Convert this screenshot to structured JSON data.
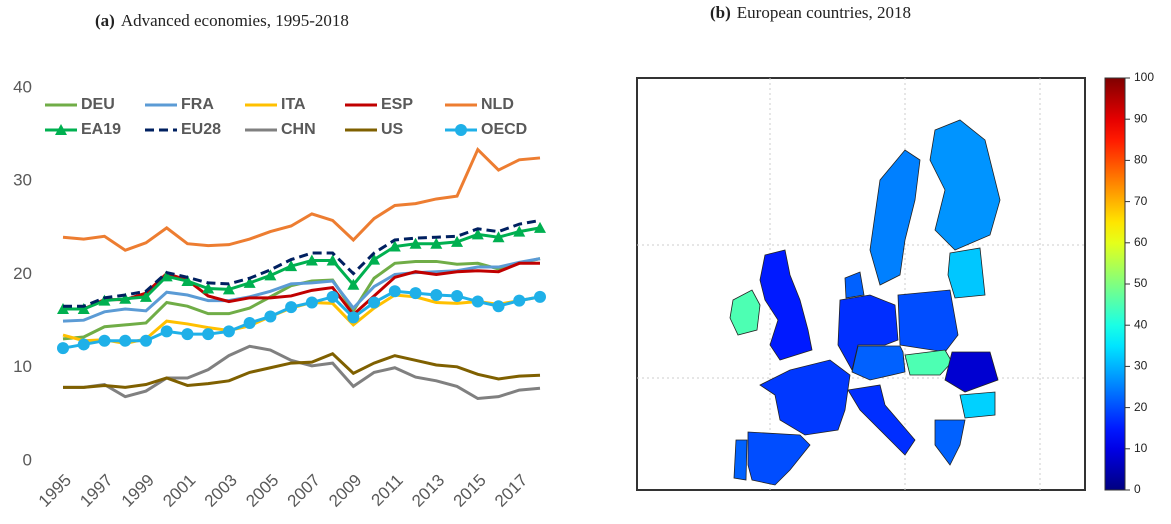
{
  "chart_data": [
    {
      "type": "line",
      "panel_label": "(a)",
      "title": "Advanced economies, 1995-2018",
      "x": [
        1995,
        1996,
        1997,
        1998,
        1999,
        2000,
        2001,
        2002,
        2003,
        2004,
        2005,
        2006,
        2007,
        2008,
        2009,
        2010,
        2011,
        2012,
        2013,
        2014,
        2015,
        2016,
        2017,
        2018
      ],
      "xlim": [
        1995,
        2018
      ],
      "xticks": [
        1995,
        1997,
        1999,
        2001,
        2003,
        2005,
        2007,
        2009,
        2011,
        2013,
        2015,
        2017
      ],
      "ylim": [
        0,
        40
      ],
      "yticks": [
        0,
        10,
        20,
        30,
        40
      ],
      "grid": false,
      "legend": "upper left",
      "series": [
        {
          "name": "DEU",
          "color": "#70ad47",
          "values": [
            13.1,
            13.3,
            14.4,
            14.6,
            14.8,
            17,
            16.6,
            15.8,
            15.8,
            16.4,
            17.6,
            18.8,
            19.3,
            19.4,
            16.1,
            19.6,
            21.2,
            21.4,
            21.4,
            21.1,
            21.2,
            20.6,
            21.2,
            21.7
          ]
        },
        {
          "name": "FRA",
          "color": "#5b9bd5",
          "values": [
            15,
            15.1,
            16,
            16.3,
            16.1,
            18.1,
            17.8,
            17.2,
            17.2,
            17.6,
            18.2,
            19,
            19.1,
            19.3,
            16.4,
            18.7,
            20,
            20.2,
            20.3,
            20.4,
            20.8,
            20.8,
            21.3,
            21.7
          ]
        },
        {
          "name": "ITA",
          "color": "#ffc000",
          "values": [
            13.5,
            12.9,
            13,
            12.6,
            13.1,
            15,
            14.7,
            14.3,
            14,
            14.5,
            15.5,
            16.4,
            17,
            16.9,
            14.6,
            16.4,
            17.8,
            17.6,
            17,
            16.9,
            17.1,
            16.8,
            17.2,
            17.6
          ]
        },
        {
          "name": "ESP",
          "color": "#c00000",
          "values": [
            16.3,
            16.3,
            17.3,
            17.3,
            18,
            20.1,
            19.4,
            17.7,
            17.1,
            17.5,
            17.5,
            17.7,
            18.3,
            18.6,
            15.7,
            17.7,
            19.7,
            20.3,
            20,
            20.3,
            20.4,
            20.3,
            21.2,
            21.2
          ]
        },
        {
          "name": "NLD",
          "color": "#ed7d31",
          "values": [
            24,
            23.8,
            24.1,
            22.6,
            23.4,
            25,
            23.3,
            23.1,
            23.2,
            23.8,
            24.6,
            25.2,
            26.5,
            25.8,
            23.7,
            26,
            27.4,
            27.6,
            28.1,
            28.4,
            33.4,
            31.2,
            32.3,
            32.5
          ]
        },
        {
          "name": "EA19",
          "color": "#00b050",
          "marker": "triangle",
          "values": [
            16.3,
            16.3,
            17.2,
            17.4,
            17.6,
            19.8,
            19.3,
            18.5,
            18.4,
            19.1,
            19.9,
            20.9,
            21.5,
            21.5,
            18.9,
            21.6,
            23,
            23.3,
            23.3,
            23.5,
            24.3,
            24,
            24.6,
            25
          ]
        },
        {
          "name": "EU28",
          "color": "#002060",
          "dash": true,
          "values": [
            16.6,
            16.6,
            17.5,
            17.8,
            18.2,
            20.2,
            19.7,
            19.1,
            19,
            19.6,
            20.5,
            21.6,
            22.3,
            22.3,
            20.1,
            22.3,
            23.7,
            23.9,
            24,
            24.1,
            24.9,
            24.6,
            25.4,
            25.8
          ]
        },
        {
          "name": "CHN",
          "color": "#808080",
          "values": [
            7.9,
            7.9,
            8.2,
            6.9,
            7.5,
            8.9,
            8.9,
            9.8,
            11.3,
            12.3,
            11.9,
            10.8,
            10.2,
            10.5,
            8,
            9.5,
            10,
            9,
            8.6,
            8,
            6.7,
            6.9,
            7.6,
            7.8
          ]
        },
        {
          "name": "US",
          "color": "#7f6000",
          "values": [
            7.9,
            7.9,
            8.1,
            7.9,
            8.2,
            8.9,
            8.1,
            8.3,
            8.6,
            9.5,
            10,
            10.5,
            10.6,
            11.5,
            9.4,
            10.5,
            11.3,
            10.8,
            10.3,
            10.1,
            9.3,
            8.8,
            9.1,
            9.2
          ]
        },
        {
          "name": "OECD",
          "color": "#1fb0e8",
          "marker": "circle",
          "values": [
            12.1,
            12.5,
            12.9,
            12.9,
            12.9,
            13.9,
            13.6,
            13.6,
            13.9,
            14.8,
            15.5,
            16.5,
            17,
            17.6,
            15.4,
            17,
            18.2,
            18,
            17.8,
            17.7,
            17.1,
            16.6,
            17.2,
            17.6
          ]
        }
      ]
    },
    {
      "type": "map",
      "panel_label": "(b)",
      "title": "European countries, 2018",
      "colormap": "jet",
      "clim": [
        0,
        100
      ],
      "colorbar_ticks": [
        0,
        10,
        20,
        30,
        40,
        50,
        60,
        70,
        80,
        90,
        100
      ],
      "values": [
        45,
        15,
        18,
        20,
        22,
        17,
        22,
        20,
        17,
        25,
        27,
        32,
        45,
        8,
        33,
        22,
        22
      ]
    }
  ]
}
